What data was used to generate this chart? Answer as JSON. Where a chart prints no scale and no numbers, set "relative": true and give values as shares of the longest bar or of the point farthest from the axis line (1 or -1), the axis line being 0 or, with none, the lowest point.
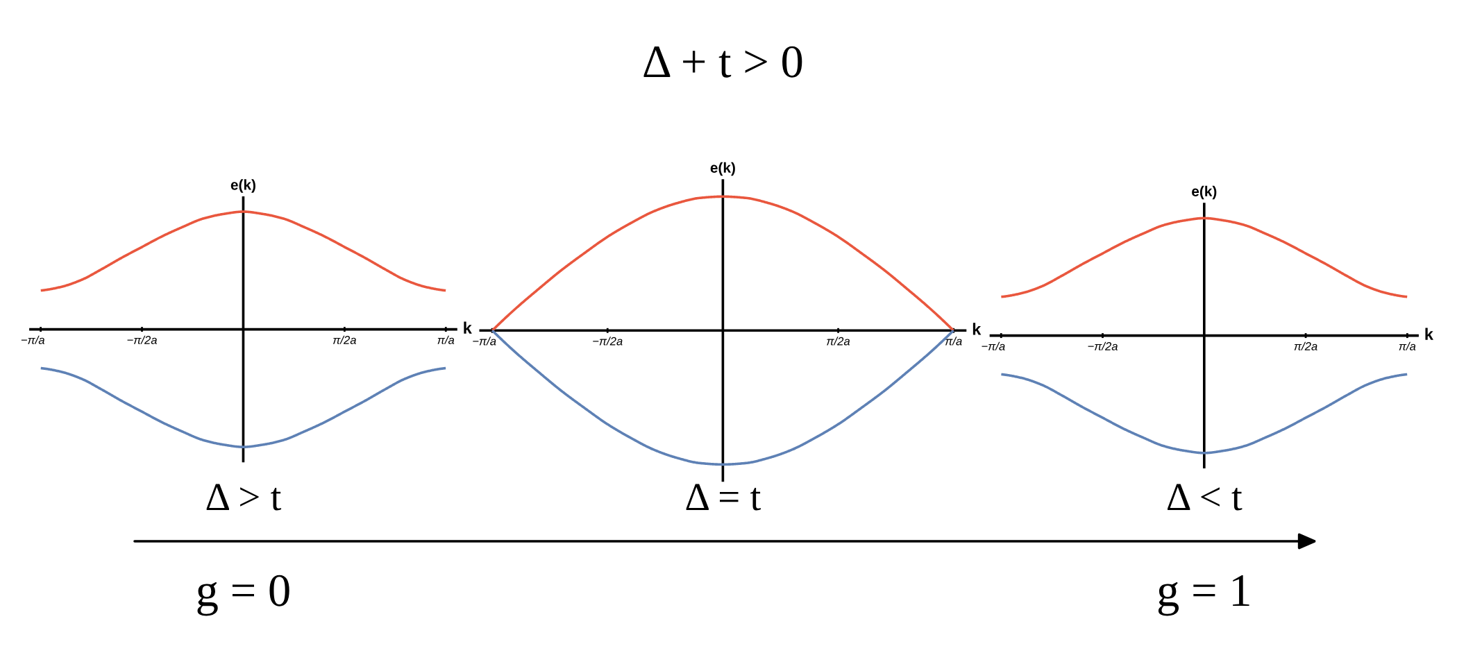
{
  "chart_data": [
    {
      "type": "line",
      "relative": true,
      "xlabel": "k",
      "ylabel": "e(k)",
      "x": [
        -3.14,
        -2.83,
        -2.51,
        -2.2,
        -1.88,
        -1.57,
        -1.26,
        -0.94,
        -0.63,
        -0.31,
        0,
        0.31,
        0.63,
        0.94,
        1.26,
        1.57,
        1.88,
        2.2,
        2.51,
        2.83,
        3.14
      ],
      "xlim": [
        -3.3,
        3.3
      ],
      "xticks": [
        {
          "value": -3.1416,
          "label": "−π/a"
        },
        {
          "value": -1.5708,
          "label": "−π/2a"
        },
        {
          "value": 1.5708,
          "label": "π/2a"
        },
        {
          "value": 3.1416,
          "label": "π/a"
        }
      ],
      "series": [
        {
          "color": "#e9573e",
          "values": [
            0.33,
            0.36,
            0.42,
            0.51,
            0.61,
            0.7,
            0.79,
            0.87,
            0.94,
            0.98,
            1,
            0.98,
            0.94,
            0.87,
            0.79,
            0.7,
            0.61,
            0.51,
            0.42,
            0.36,
            0.33
          ]
        },
        {
          "color": "#5e81b5",
          "values": [
            -0.33,
            -0.36,
            -0.42,
            -0.51,
            -0.61,
            -0.7,
            -0.79,
            -0.87,
            -0.94,
            -0.98,
            -1,
            -0.98,
            -0.94,
            -0.87,
            -0.79,
            -0.7,
            -0.61,
            -0.51,
            -0.42,
            -0.36,
            -0.33
          ]
        }
      ],
      "annotations": [
        "Δ > t",
        "g = 0"
      ]
    },
    {
      "type": "line",
      "relative": true,
      "title": "Δ + t > 0",
      "xlabel": "k",
      "ylabel": "e(k)",
      "x": [
        -3.14,
        -2.83,
        -2.51,
        -2.2,
        -1.88,
        -1.57,
        -1.26,
        -0.94,
        -0.63,
        -0.31,
        0,
        0.31,
        0.63,
        0.94,
        1.26,
        1.57,
        1.88,
        2.2,
        2.51,
        2.83,
        3.14
      ],
      "xlim": [
        -3.3,
        3.3
      ],
      "xticks": [
        {
          "value": -3.1416,
          "label": "−π/a"
        },
        {
          "value": -1.5708,
          "label": "−π/2a"
        },
        {
          "value": 1.5708,
          "label": "π/2a"
        },
        {
          "value": 3.1416,
          "label": "π/a"
        }
      ],
      "series": [
        {
          "color": "#e9573e",
          "values": [
            0,
            0.16,
            0.31,
            0.45,
            0.58,
            0.7,
            0.8,
            0.89,
            0.95,
            0.99,
            1,
            0.99,
            0.95,
            0.89,
            0.8,
            0.7,
            0.58,
            0.45,
            0.31,
            0.16,
            0
          ]
        },
        {
          "color": "#5e81b5",
          "values": [
            0,
            -0.16,
            -0.31,
            -0.45,
            -0.58,
            -0.7,
            -0.8,
            -0.89,
            -0.95,
            -0.99,
            -1,
            -0.99,
            -0.95,
            -0.89,
            -0.8,
            -0.7,
            -0.58,
            -0.45,
            -0.31,
            -0.16,
            0
          ]
        }
      ],
      "annotations": [
        "Δ = t"
      ]
    },
    {
      "type": "line",
      "relative": true,
      "xlabel": "k",
      "ylabel": "e(k)",
      "x": [
        -3.14,
        -2.83,
        -2.51,
        -2.2,
        -1.88,
        -1.57,
        -1.26,
        -0.94,
        -0.63,
        -0.31,
        0,
        0.31,
        0.63,
        0.94,
        1.26,
        1.57,
        1.88,
        2.2,
        2.51,
        2.83,
        3.14
      ],
      "xlim": [
        -3.3,
        3.3
      ],
      "xticks": [
        {
          "value": -3.1416,
          "label": "−π/a"
        },
        {
          "value": -1.5708,
          "label": "−π/2a"
        },
        {
          "value": 1.5708,
          "label": "π/2a"
        },
        {
          "value": 3.1416,
          "label": "π/a"
        }
      ],
      "series": [
        {
          "color": "#e9573e",
          "values": [
            0.33,
            0.36,
            0.42,
            0.51,
            0.61,
            0.7,
            0.79,
            0.87,
            0.94,
            0.98,
            1,
            0.98,
            0.94,
            0.87,
            0.79,
            0.7,
            0.61,
            0.51,
            0.42,
            0.36,
            0.33
          ]
        },
        {
          "color": "#5e81b5",
          "values": [
            -0.33,
            -0.36,
            -0.42,
            -0.51,
            -0.61,
            -0.7,
            -0.79,
            -0.87,
            -0.94,
            -0.98,
            -1,
            -0.98,
            -0.94,
            -0.87,
            -0.79,
            -0.7,
            -0.61,
            -0.51,
            -0.42,
            -0.36,
            -0.33
          ]
        }
      ],
      "annotations": [
        "Δ < t",
        "g = 1"
      ]
    }
  ]
}
